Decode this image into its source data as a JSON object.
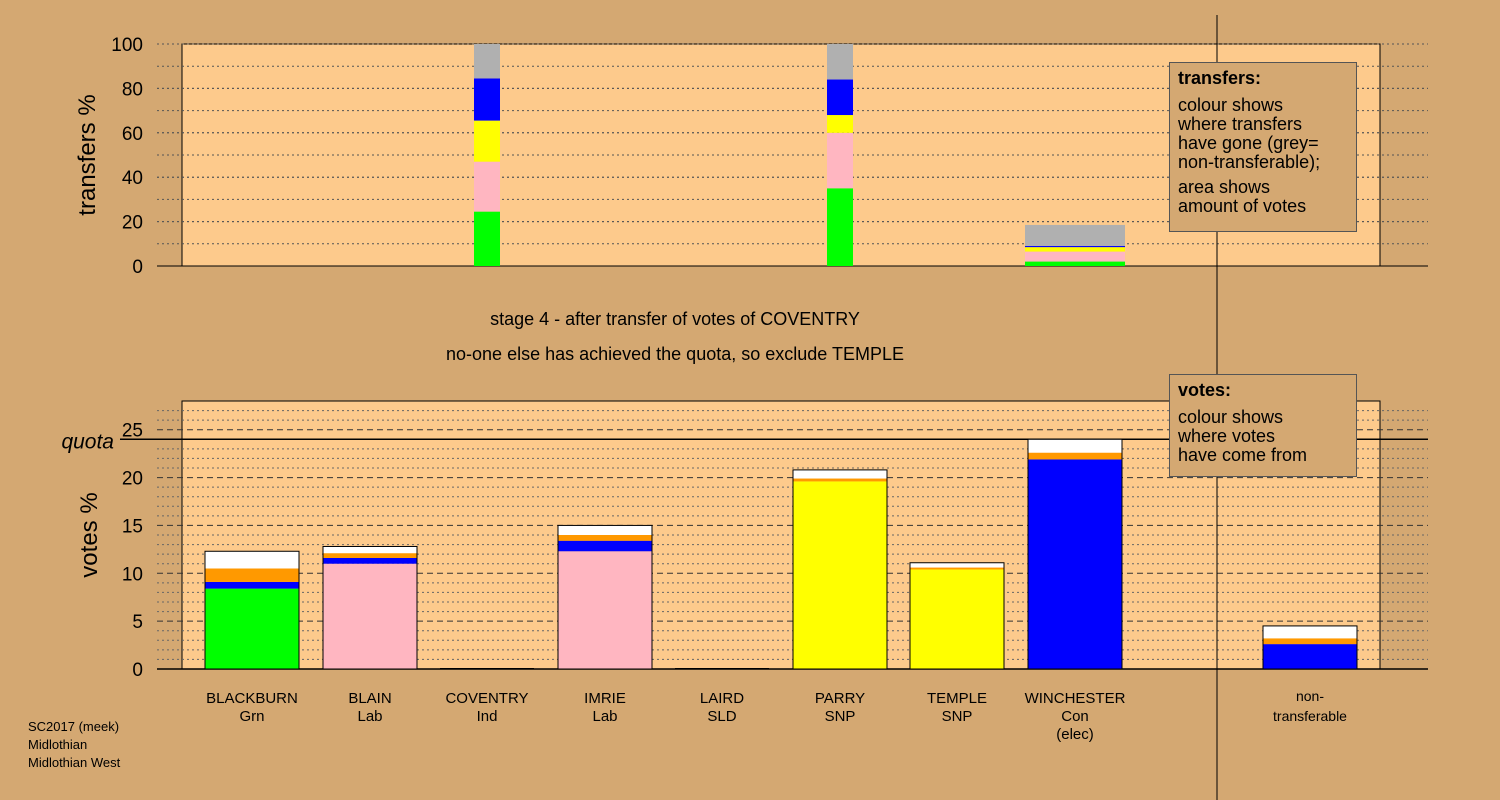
{
  "colors": {
    "background": "#d4a872",
    "plot_background": "#fdca8c",
    "green": "#00ff00",
    "pink": "#ffb6c1",
    "yellow": "#ffff00",
    "blue": "#0000ff",
    "orange": "#ff9900",
    "white": "#ffffff",
    "grey": "#b0b0b0"
  },
  "stage_text": {
    "line1": "stage 4 - after transfer of votes of COVENTRY",
    "line2": "no-one else has achieved the quota, so exclude TEMPLE"
  },
  "transfers_legend": {
    "title": "transfers:",
    "line1": "colour shows\nwhere transfers\nhave gone (grey=\nnon-transferable);",
    "line2": "area shows\namount of votes"
  },
  "votes_legend": {
    "title": "votes:",
    "line1": "colour shows\nwhere votes\nhave come from"
  },
  "footer": {
    "line1": "SC2017 (meek)",
    "line2": "Midlothian",
    "line3": "Midlothian West"
  },
  "chart_data": [
    {
      "type": "bar",
      "stacked": true,
      "title": "",
      "xlabel": "",
      "ylabel": "transfers %",
      "ylim": [
        0,
        100
      ],
      "yticks": [
        0,
        20,
        40,
        60,
        80,
        100
      ],
      "grid": true,
      "note": "columns at COVENTRY, PARRY positions, plus a wide low-height block for the transferred votes area",
      "series_order": [
        "green",
        "pink",
        "yellow",
        "blue",
        "grey"
      ],
      "columns": [
        {
          "position": "COVENTRY",
          "width_scale": 1.0,
          "segments": [
            24.5,
            22.5,
            18.5,
            19.0,
            15.5
          ]
        },
        {
          "position": "PARRY",
          "width_scale": 1.0,
          "segments": [
            35.0,
            25.0,
            8.0,
            16.0,
            16.0
          ]
        },
        {
          "position": "WINCHESTER",
          "width_scale": 1.0,
          "wide": true,
          "segments": [
            2.0,
            4.5,
            2.0,
            0.5,
            9.5
          ]
        }
      ]
    },
    {
      "type": "bar",
      "stacked": true,
      "title": "",
      "xlabel": "",
      "ylabel": "votes %",
      "ylim": [
        0,
        28
      ],
      "yticks": [
        0,
        5,
        10,
        15,
        20,
        25
      ],
      "quota": 24,
      "quota_label": "quota",
      "grid": true,
      "series_order": [
        "green",
        "pink",
        "yellow",
        "blue",
        "orange",
        "white"
      ],
      "categories": [
        {
          "name": "BLACKBURN",
          "party": "Grn",
          "extra": ""
        },
        {
          "name": "BLAIN",
          "party": "Lab",
          "extra": ""
        },
        {
          "name": "COVENTRY",
          "party": "Ind",
          "extra": ""
        },
        {
          "name": "IMRIE",
          "party": "Lab",
          "extra": ""
        },
        {
          "name": "LAIRD",
          "party": "SLD",
          "extra": ""
        },
        {
          "name": "PARRY",
          "party": "SNP",
          "extra": ""
        },
        {
          "name": "TEMPLE",
          "party": "SNP",
          "extra": ""
        },
        {
          "name": "WINCHESTER",
          "party": "Con",
          "extra": "(elec)"
        }
      ],
      "values": [
        [
          8.4,
          0,
          0,
          0.7,
          1.4,
          1.8
        ],
        [
          0,
          11.0,
          0,
          0.6,
          0.5,
          0.7
        ],
        [
          0,
          0,
          0,
          0,
          0,
          0
        ],
        [
          0,
          12.3,
          0,
          1.1,
          0.6,
          1.0
        ],
        [
          0,
          0,
          0,
          0,
          0,
          0
        ],
        [
          0,
          0,
          19.6,
          0,
          0.3,
          0.9
        ],
        [
          0,
          0,
          10.4,
          0,
          0.2,
          0.5
        ],
        [
          0,
          0,
          0,
          21.9,
          0.7,
          1.4
        ]
      ],
      "nontransferable": {
        "label1": "non-",
        "label2": "transferable",
        "values": [
          0,
          0,
          0,
          2.6,
          0.6,
          1.3
        ]
      }
    }
  ]
}
